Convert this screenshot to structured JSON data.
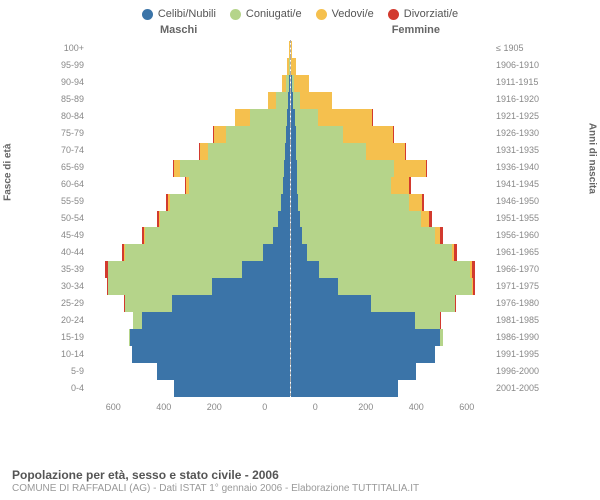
{
  "title": "Popolazione per età, sesso e stato civile - 2006",
  "subtitle": "COMUNE DI RAFFADALI (AG) - Dati ISTAT 1° gennaio 2006 - Elaborazione TUTTITALIA.IT",
  "legend": [
    {
      "label": "Celibi/Nubili",
      "color": "#3b74a8"
    },
    {
      "label": "Coniugati/e",
      "color": "#b5d48a"
    },
    {
      "label": "Vedovi/e",
      "color": "#f5c04e"
    },
    {
      "label": "Divorziati/e",
      "color": "#d23a2e"
    }
  ],
  "columns": {
    "male": "Maschi",
    "female": "Femmine"
  },
  "axes": {
    "left_label": "Fasce di età",
    "right_label": "Anni di nascita",
    "x_ticks": [
      "0",
      "200",
      "400",
      "600"
    ],
    "x_max": 600
  },
  "colors": {
    "celibi": "#3b74a8",
    "coniugati": "#b5d48a",
    "vedovi": "#f5c04e",
    "divorziati": "#d23a2e",
    "grid": "#e8e8e8",
    "background": "#ffffff"
  },
  "age_groups": [
    {
      "age": "100+",
      "birth": "≤ 1905",
      "m": {
        "c": 0,
        "co": 0,
        "v": 3,
        "d": 0
      },
      "f": {
        "c": 0,
        "co": 0,
        "v": 5,
        "d": 0
      }
    },
    {
      "age": "95-99",
      "birth": "1906-1910",
      "m": {
        "c": 0,
        "co": 2,
        "v": 5,
        "d": 0
      },
      "f": {
        "c": 2,
        "co": 0,
        "v": 15,
        "d": 0
      }
    },
    {
      "age": "90-94",
      "birth": "1911-1915",
      "m": {
        "c": 2,
        "co": 8,
        "v": 12,
        "d": 0
      },
      "f": {
        "c": 5,
        "co": 5,
        "v": 45,
        "d": 0
      }
    },
    {
      "age": "85-89",
      "birth": "1916-1920",
      "m": {
        "c": 5,
        "co": 35,
        "v": 25,
        "d": 0
      },
      "f": {
        "c": 8,
        "co": 20,
        "v": 95,
        "d": 0
      }
    },
    {
      "age": "80-84",
      "birth": "1921-1925",
      "m": {
        "c": 8,
        "co": 110,
        "v": 45,
        "d": 0
      },
      "f": {
        "c": 12,
        "co": 70,
        "v": 160,
        "d": 2
      }
    },
    {
      "age": "75-79",
      "birth": "1926-1930",
      "m": {
        "c": 10,
        "co": 180,
        "v": 35,
        "d": 2
      },
      "f": {
        "c": 15,
        "co": 140,
        "v": 150,
        "d": 3
      }
    },
    {
      "age": "70-74",
      "birth": "1931-1935",
      "m": {
        "c": 12,
        "co": 230,
        "v": 25,
        "d": 3
      },
      "f": {
        "c": 15,
        "co": 210,
        "v": 115,
        "d": 4
      }
    },
    {
      "age": "65-69",
      "birth": "1936-1940",
      "m": {
        "c": 15,
        "co": 310,
        "v": 18,
        "d": 4
      },
      "f": {
        "c": 18,
        "co": 290,
        "v": 95,
        "d": 5
      }
    },
    {
      "age": "60-64",
      "birth": "1941-1945",
      "m": {
        "c": 18,
        "co": 280,
        "v": 10,
        "d": 4
      },
      "f": {
        "c": 18,
        "co": 280,
        "v": 55,
        "d": 5
      }
    },
    {
      "age": "55-59",
      "birth": "1946-1950",
      "m": {
        "c": 25,
        "co": 330,
        "v": 8,
        "d": 5
      },
      "f": {
        "c": 22,
        "co": 330,
        "v": 40,
        "d": 6
      }
    },
    {
      "age": "50-54",
      "birth": "1951-1955",
      "m": {
        "c": 35,
        "co": 350,
        "v": 5,
        "d": 6
      },
      "f": {
        "c": 28,
        "co": 360,
        "v": 25,
        "d": 7
      }
    },
    {
      "age": "45-49",
      "birth": "1956-1960",
      "m": {
        "c": 50,
        "co": 380,
        "v": 3,
        "d": 7
      },
      "f": {
        "c": 35,
        "co": 395,
        "v": 15,
        "d": 8
      }
    },
    {
      "age": "40-44",
      "birth": "1961-1965",
      "m": {
        "c": 80,
        "co": 410,
        "v": 2,
        "d": 8
      },
      "f": {
        "c": 50,
        "co": 430,
        "v": 8,
        "d": 8
      }
    },
    {
      "age": "35-39",
      "birth": "1966-1970",
      "m": {
        "c": 140,
        "co": 400,
        "v": 1,
        "d": 7
      },
      "f": {
        "c": 85,
        "co": 450,
        "v": 5,
        "d": 9
      }
    },
    {
      "age": "30-34",
      "birth": "1971-1975",
      "m": {
        "c": 230,
        "co": 310,
        "v": 0,
        "d": 5
      },
      "f": {
        "c": 140,
        "co": 400,
        "v": 3,
        "d": 7
      }
    },
    {
      "age": "25-29",
      "birth": "1976-1980",
      "m": {
        "c": 350,
        "co": 140,
        "v": 0,
        "d": 2
      },
      "f": {
        "c": 240,
        "co": 250,
        "v": 1,
        "d": 3
      }
    },
    {
      "age": "20-24",
      "birth": "1981-1985",
      "m": {
        "c": 440,
        "co": 25,
        "v": 0,
        "d": 0
      },
      "f": {
        "c": 370,
        "co": 75,
        "v": 0,
        "d": 1
      }
    },
    {
      "age": "15-19",
      "birth": "1986-1990",
      "m": {
        "c": 475,
        "co": 2,
        "v": 0,
        "d": 0
      },
      "f": {
        "c": 445,
        "co": 10,
        "v": 0,
        "d": 0
      }
    },
    {
      "age": "10-14",
      "birth": "1991-1995",
      "m": {
        "c": 470,
        "co": 0,
        "v": 0,
        "d": 0
      },
      "f": {
        "c": 430,
        "co": 0,
        "v": 0,
        "d": 0
      }
    },
    {
      "age": "5-9",
      "birth": "1996-2000",
      "m": {
        "c": 395,
        "co": 0,
        "v": 0,
        "d": 0
      },
      "f": {
        "c": 375,
        "co": 0,
        "v": 0,
        "d": 0
      }
    },
    {
      "age": "0-4",
      "birth": "2001-2005",
      "m": {
        "c": 345,
        "co": 0,
        "v": 0,
        "d": 0
      },
      "f": {
        "c": 320,
        "co": 0,
        "v": 0,
        "d": 0
      }
    }
  ]
}
